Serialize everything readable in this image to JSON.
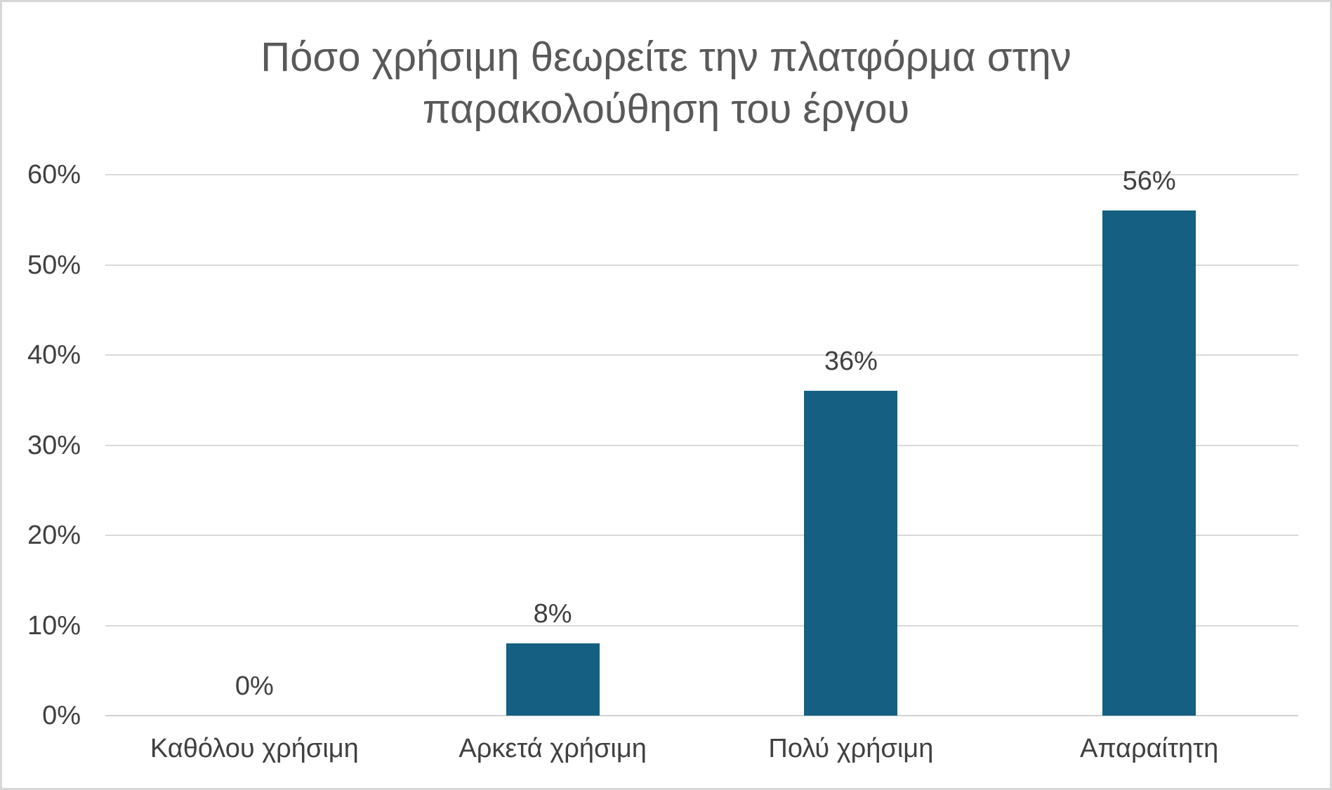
{
  "frame": {
    "background": "#ffffff",
    "border_color": "#d7d7d7"
  },
  "title": {
    "line1": "Πόσο χρήσιμη θεωρείτε την πλατφόρμα στην",
    "line2": "παρακολούθηση του έργου",
    "color": "#595959"
  },
  "chart_data": {
    "type": "bar",
    "title": "Πόσο χρήσιμη θεωρείτε την πλατφόρμα στην παρακολούθηση του έργου",
    "categories": [
      "Καθόλου χρήσιμη",
      "Αρκετά χρήσιμη",
      "Πολύ χρήσιμη",
      "Απαραίτητη"
    ],
    "values": [
      0,
      8,
      36,
      56
    ],
    "data_labels": [
      "0%",
      "8%",
      "36%",
      "56%"
    ],
    "xlabel": "",
    "ylabel": "",
    "ylim": [
      0,
      60
    ],
    "y_tick_values": [
      0,
      10,
      20,
      30,
      40,
      50,
      60
    ],
    "y_tick_labels": [
      "0%",
      "10%",
      "20%",
      "30%",
      "40%",
      "50%",
      "60%"
    ],
    "grid": true,
    "legend": false,
    "bar_color": "#156082",
    "gridline_color": "#d9d9d9",
    "label_color": "#404040",
    "title_color": "#595959"
  }
}
